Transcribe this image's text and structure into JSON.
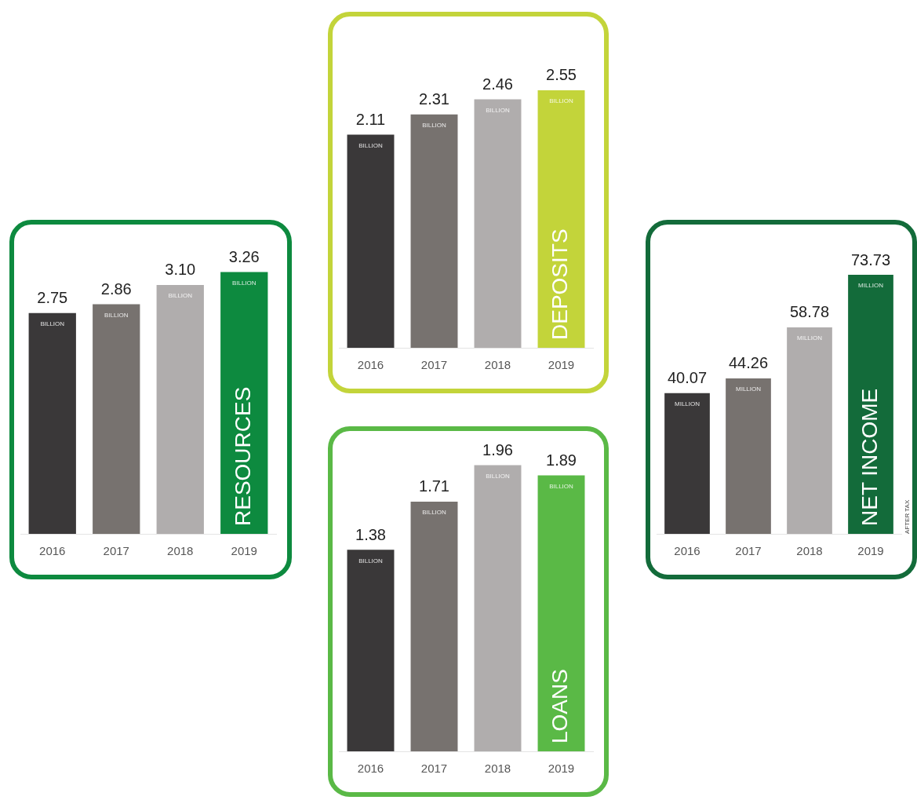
{
  "chart_data": [
    {
      "type": "bar",
      "title": "RESOURCES",
      "categories": [
        "2016",
        "2017",
        "2018",
        "2019"
      ],
      "values": [
        2.75,
        2.86,
        3.1,
        3.26
      ],
      "value_labels": [
        "2.75",
        "2.86",
        "3.10",
        "3.26"
      ],
      "colors": [
        "#3a3839",
        "#77726f",
        "#b0adad",
        "#0d8a3f"
      ],
      "tick_labels": "x",
      "legend": false,
      "grid": false,
      "annotations": [
        {
          "text": "BILLION",
          "x": "2016",
          "y": 2.75
        },
        {
          "text": "BILLION",
          "x": "2017",
          "y": 2.86
        },
        {
          "text": "BILLION",
          "x": "2018",
          "y": 3.1
        },
        {
          "text": "BILLION",
          "x": "2019",
          "y": 3.26
        }
      ]
    },
    {
      "type": "bar",
      "title": "DEPOSITS",
      "categories": [
        "2016",
        "2017",
        "2018",
        "2019"
      ],
      "values": [
        2.11,
        2.31,
        2.46,
        2.55
      ],
      "value_labels": [
        "2.11",
        "2.31",
        "2.46",
        "2.55"
      ],
      "colors": [
        "#3a3839",
        "#77726f",
        "#b0adad",
        "#c3d43a"
      ],
      "tick_labels": "x",
      "legend": false,
      "grid": false,
      "annotations": [
        {
          "text": "BILLION",
          "x": "2016",
          "y": 2.11
        },
        {
          "text": "BILLION",
          "x": "2017",
          "y": 2.31
        },
        {
          "text": "BILLION",
          "x": "2018",
          "y": 2.46
        },
        {
          "text": "BILLION",
          "x": "2019",
          "y": 2.55
        }
      ]
    },
    {
      "type": "bar",
      "title": "LOANS",
      "categories": [
        "2016",
        "2017",
        "2018",
        "2019"
      ],
      "values": [
        1.38,
        1.71,
        1.96,
        1.89
      ],
      "value_labels": [
        "1.38",
        "1.71",
        "1.96",
        "1.89"
      ],
      "colors": [
        "#3a3839",
        "#77726f",
        "#b0adad",
        "#5ab946"
      ],
      "tick_labels": "x",
      "legend": false,
      "grid": false,
      "annotations": [
        {
          "text": "BILLION",
          "x": "2016",
          "y": 1.38
        },
        {
          "text": "BILLION",
          "x": "2017",
          "y": 1.71
        },
        {
          "text": "BILLION",
          "x": "2018",
          "y": 1.96
        },
        {
          "text": "BILLION",
          "x": "2019",
          "y": 1.89
        }
      ]
    },
    {
      "type": "bar",
      "title": "NET INCOME",
      "categories": [
        "2016",
        "2017",
        "2018",
        "2019"
      ],
      "values": [
        40.07,
        44.26,
        58.78,
        73.73
      ],
      "value_labels": [
        "40.07",
        "44.26",
        "58.78",
        "73.73"
      ],
      "colors": [
        "#3a3839",
        "#77726f",
        "#b0adad",
        "#136b3a"
      ],
      "tick_labels": "x",
      "legend": false,
      "grid": false,
      "annotations": [
        {
          "text": "MILLION",
          "x": "2016",
          "y": 40.07
        },
        {
          "text": "MILLION",
          "x": "2017",
          "y": 44.26
        },
        {
          "text": "MILLION",
          "x": "2018",
          "y": 58.78
        },
        {
          "text": "MILLION",
          "x": "2019",
          "y": 73.73
        },
        "AFTER TAX"
      ]
    }
  ]
}
